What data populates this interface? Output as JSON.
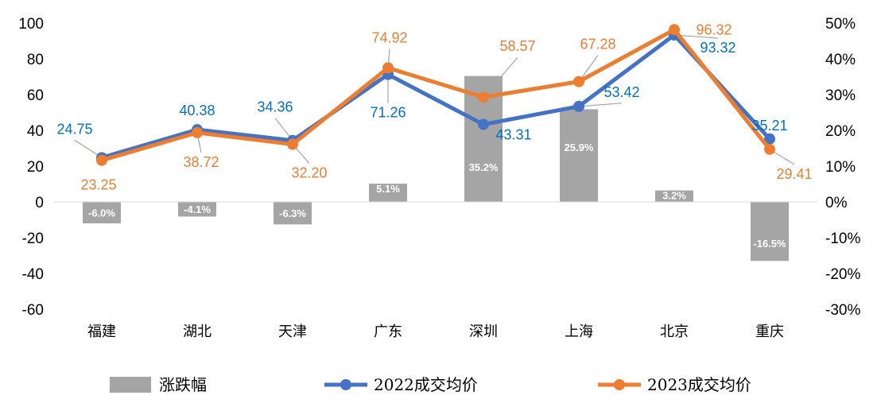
{
  "chart_data": {
    "type": "bar+line",
    "categories": [
      "福建",
      "湖北",
      "天津",
      "广东",
      "深圳",
      "上海",
      "北京",
      "重庆"
    ],
    "series": [
      {
        "name": "涨跌幅",
        "type": "bar",
        "axis": "right",
        "values": [
          -6.0,
          -4.1,
          -6.3,
          5.1,
          35.2,
          25.9,
          3.2,
          -16.5
        ],
        "labels": [
          "-6.0%",
          "-4.1%",
          "-6.3%",
          "5.1%",
          "35.2%",
          "25.9%",
          "3.2%",
          "-16.5%"
        ],
        "color": "#A5A5A5"
      },
      {
        "name": "2022成交均价",
        "type": "line",
        "axis": "left",
        "values": [
          24.75,
          40.38,
          34.36,
          71.26,
          43.31,
          53.42,
          93.32,
          35.21
        ],
        "labels": [
          "24.75",
          "40.38",
          "34.36",
          "71.26",
          "43.31",
          "53.42",
          "93.32",
          "35.21"
        ],
        "color": "#4472C4",
        "label_color": "#0070C0"
      },
      {
        "name": "2023成交均价",
        "type": "line",
        "axis": "left",
        "values": [
          23.25,
          38.72,
          32.2,
          74.92,
          58.57,
          67.28,
          96.32,
          29.41
        ],
        "labels": [
          "23.25",
          "38.72",
          "32.20",
          "74.92",
          "58.57",
          "67.28",
          "96.32",
          "29.41"
        ],
        "color": "#ED7D31",
        "label_color": "#ED7D31"
      }
    ],
    "y_left": {
      "ylim": [
        -60,
        100
      ],
      "ticks": [
        "-60",
        "-40",
        "-20",
        "0",
        "20",
        "40",
        "60",
        "80",
        "100"
      ]
    },
    "y_right": {
      "ylim": [
        -30,
        50
      ],
      "ticks": [
        "-30%",
        "-20%",
        "-10%",
        "0%",
        "10%",
        "20%",
        "30%",
        "40%",
        "50%"
      ]
    },
    "grid": false,
    "legend": "bottom"
  }
}
